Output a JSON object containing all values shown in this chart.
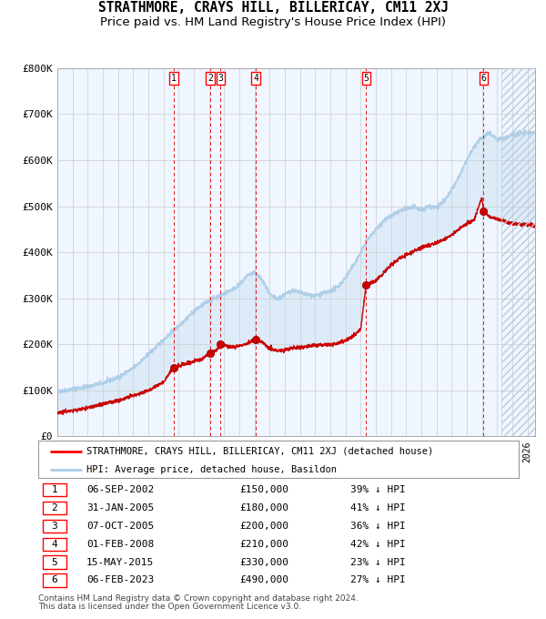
{
  "title": "STRATHMORE, CRAYS HILL, BILLERICAY, CM11 2XJ",
  "subtitle": "Price paid vs. HM Land Registry's House Price Index (HPI)",
  "legend_line1": "STRATHMORE, CRAYS HILL, BILLERICAY, CM11 2XJ (detached house)",
  "legend_line2": "HPI: Average price, detached house, Basildon",
  "footer1": "Contains HM Land Registry data © Crown copyright and database right 2024.",
  "footer2": "This data is licensed under the Open Government Licence v3.0.",
  "transactions": [
    {
      "num": 1,
      "date": "06-SEP-2002",
      "price": 150000,
      "pct": "39%",
      "year": 2002.67
    },
    {
      "num": 2,
      "date": "31-JAN-2005",
      "price": 180000,
      "pct": "41%",
      "year": 2005.08
    },
    {
      "num": 3,
      "date": "07-OCT-2005",
      "price": 200000,
      "pct": "36%",
      "year": 2005.77
    },
    {
      "num": 4,
      "date": "01-FEB-2008",
      "price": 210000,
      "pct": "42%",
      "year": 2008.08
    },
    {
      "num": 5,
      "date": "15-MAY-2015",
      "price": 330000,
      "pct": "23%",
      "year": 2015.37
    },
    {
      "num": 6,
      "date": "06-FEB-2023",
      "price": 490000,
      "pct": "27%",
      "year": 2023.1
    }
  ],
  "xmin": 1995,
  "xmax": 2026.5,
  "ymin": 0,
  "ymax": 800000,
  "hpi_color": "#aacce8",
  "price_color": "#cc0000",
  "marker_color": "#cc0000",
  "dashed_color": "#dd0000",
  "shading_color": "#daeaf8",
  "grid_color": "#cccccc",
  "bg_color": "#f0f6ff",
  "title_fontsize": 10.5,
  "subtitle_fontsize": 9.5,
  "axis_fontsize": 8,
  "yticks": [
    0,
    100000,
    200000,
    300000,
    400000,
    500000,
    600000,
    700000,
    800000
  ],
  "ytick_labels": [
    "£0",
    "£100K",
    "£200K",
    "£300K",
    "£400K",
    "£500K",
    "£600K",
    "£700K",
    "£800K"
  ],
  "hpi_anchors": [
    [
      1995.0,
      97000
    ],
    [
      1996.0,
      103000
    ],
    [
      1997.0,
      108000
    ],
    [
      1998.0,
      116000
    ],
    [
      1999.0,
      128000
    ],
    [
      2000.0,
      148000
    ],
    [
      2001.0,
      178000
    ],
    [
      2002.0,
      210000
    ],
    [
      2003.0,
      240000
    ],
    [
      2004.0,
      272000
    ],
    [
      2005.0,
      295000
    ],
    [
      2006.0,
      310000
    ],
    [
      2007.0,
      328000
    ],
    [
      2007.5,
      350000
    ],
    [
      2008.0,
      355000
    ],
    [
      2008.5,
      340000
    ],
    [
      2009.0,
      308000
    ],
    [
      2009.5,
      298000
    ],
    [
      2010.0,
      308000
    ],
    [
      2010.5,
      318000
    ],
    [
      2011.0,
      312000
    ],
    [
      2011.5,
      308000
    ],
    [
      2012.0,
      305000
    ],
    [
      2012.5,
      310000
    ],
    [
      2013.0,
      315000
    ],
    [
      2013.5,
      325000
    ],
    [
      2014.0,
      345000
    ],
    [
      2014.5,
      370000
    ],
    [
      2015.0,
      400000
    ],
    [
      2015.5,
      430000
    ],
    [
      2016.0,
      450000
    ],
    [
      2016.5,
      468000
    ],
    [
      2017.0,
      478000
    ],
    [
      2017.5,
      488000
    ],
    [
      2018.0,
      495000
    ],
    [
      2018.5,
      498000
    ],
    [
      2019.0,
      492000
    ],
    [
      2019.5,
      500000
    ],
    [
      2020.0,
      498000
    ],
    [
      2020.5,
      510000
    ],
    [
      2021.0,
      535000
    ],
    [
      2021.5,
      565000
    ],
    [
      2022.0,
      600000
    ],
    [
      2022.5,
      630000
    ],
    [
      2023.0,
      650000
    ],
    [
      2023.5,
      660000
    ],
    [
      2024.0,
      645000
    ],
    [
      2024.5,
      648000
    ],
    [
      2025.0,
      655000
    ],
    [
      2025.5,
      658000
    ],
    [
      2026.5,
      660000
    ]
  ],
  "price_anchors": [
    [
      1995.0,
      52000
    ],
    [
      1996.0,
      56000
    ],
    [
      1997.0,
      62000
    ],
    [
      1998.0,
      70000
    ],
    [
      1999.0,
      78000
    ],
    [
      2000.0,
      88000
    ],
    [
      2001.0,
      100000
    ],
    [
      2002.0,
      118000
    ],
    [
      2002.67,
      150000
    ],
    [
      2003.0,
      153000
    ],
    [
      2003.5,
      158000
    ],
    [
      2004.0,
      163000
    ],
    [
      2004.5,
      168000
    ],
    [
      2005.08,
      180000
    ],
    [
      2005.5,
      188000
    ],
    [
      2005.77,
      200000
    ],
    [
      2006.0,
      197000
    ],
    [
      2006.5,
      193000
    ],
    [
      2007.0,
      197000
    ],
    [
      2007.5,
      202000
    ],
    [
      2008.08,
      210000
    ],
    [
      2008.5,
      205000
    ],
    [
      2009.0,
      192000
    ],
    [
      2009.5,
      185000
    ],
    [
      2010.0,
      188000
    ],
    [
      2010.5,
      192000
    ],
    [
      2011.0,
      194000
    ],
    [
      2011.5,
      196000
    ],
    [
      2012.0,
      198000
    ],
    [
      2012.5,
      199000
    ],
    [
      2013.0,
      200000
    ],
    [
      2013.5,
      203000
    ],
    [
      2014.0,
      208000
    ],
    [
      2014.5,
      218000
    ],
    [
      2015.0,
      232000
    ],
    [
      2015.36,
      330000
    ],
    [
      2015.5,
      330000
    ],
    [
      2016.0,
      338000
    ],
    [
      2016.5,
      355000
    ],
    [
      2017.0,
      372000
    ],
    [
      2017.5,
      385000
    ],
    [
      2018.0,
      395000
    ],
    [
      2018.5,
      402000
    ],
    [
      2019.0,
      410000
    ],
    [
      2019.5,
      415000
    ],
    [
      2020.0,
      420000
    ],
    [
      2020.5,
      428000
    ],
    [
      2021.0,
      438000
    ],
    [
      2021.5,
      450000
    ],
    [
      2022.0,
      462000
    ],
    [
      2022.5,
      472000
    ],
    [
      2023.0,
      520000
    ],
    [
      2023.1,
      490000
    ],
    [
      2023.5,
      478000
    ],
    [
      2024.0,
      472000
    ],
    [
      2024.5,
      468000
    ],
    [
      2025.0,
      462000
    ],
    [
      2026.5,
      458000
    ]
  ]
}
